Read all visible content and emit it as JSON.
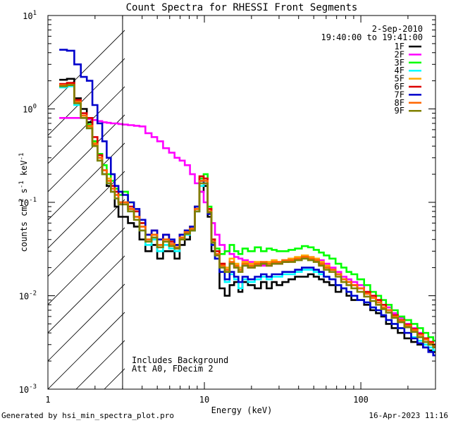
{
  "chart_data": {
    "type": "line",
    "title": "Count Spectra for RHESSI Front Segments",
    "xlabel": "Energy (keV)",
    "ylabel": "counts cm-2 s-1 keV-1",
    "xscale": "log",
    "yscale": "log",
    "xlim": [
      1,
      300
    ],
    "ylim": [
      0.001,
      10
    ],
    "x_ticks": [
      {
        "value": 1,
        "label": "1"
      },
      {
        "value": 10,
        "label": "10"
      },
      {
        "value": 100,
        "label": "100"
      }
    ],
    "y_ticks": [
      {
        "value": 0.001,
        "base": "10",
        "exp": "-3"
      },
      {
        "value": 0.01,
        "base": "10",
        "exp": "-2"
      },
      {
        "value": 0.1,
        "base": "10",
        "exp": "-1"
      },
      {
        "value": 1,
        "base": "10",
        "exp": "0"
      },
      {
        "value": 10,
        "base": "10",
        "exp": "1"
      }
    ],
    "date": "2-Sep-2010",
    "time_range": "19:40:00 to 19:41:00",
    "shaded_region": {
      "from": 1,
      "to": 3
    },
    "annotations": [
      "Includes Background",
      "Att A0, FDecim 2"
    ],
    "x": [
      1.25,
      1.4,
      1.55,
      1.7,
      1.85,
      2.0,
      2.15,
      2.3,
      2.45,
      2.6,
      2.75,
      2.9,
      3.1,
      3.4,
      3.7,
      4.0,
      4.4,
      4.8,
      5.2,
      5.7,
      6.2,
      6.7,
      7.2,
      7.8,
      8.4,
      9.0,
      9.6,
      10.2,
      10.8,
      11.4,
      12,
      13,
      14,
      15,
      16,
      17,
      18,
      20,
      22,
      24,
      26,
      28,
      30,
      33,
      36,
      40,
      44,
      48,
      52,
      56,
      60,
      66,
      72,
      78,
      84,
      90,
      100,
      110,
      120,
      130,
      140,
      150,
      165,
      180,
      200,
      220,
      240,
      260,
      280,
      300
    ],
    "series": [
      {
        "name": "1F",
        "color": "#000000",
        "values": [
          2.05,
          2.1,
          1.3,
          1.0,
          0.72,
          0.45,
          0.3,
          0.2,
          0.15,
          0.13,
          0.09,
          0.07,
          0.07,
          0.06,
          0.055,
          0.04,
          0.03,
          0.035,
          0.025,
          0.03,
          0.03,
          0.025,
          0.035,
          0.04,
          0.05,
          0.08,
          0.13,
          0.15,
          0.07,
          0.03,
          0.025,
          0.012,
          0.01,
          0.013,
          0.014,
          0.011,
          0.014,
          0.013,
          0.012,
          0.014,
          0.012,
          0.014,
          0.013,
          0.014,
          0.015,
          0.016,
          0.016,
          0.017,
          0.016,
          0.015,
          0.014,
          0.013,
          0.011,
          0.012,
          0.01,
          0.009,
          0.009,
          0.008,
          0.007,
          0.0065,
          0.006,
          0.005,
          0.0045,
          0.004,
          0.0035,
          0.0032,
          0.003,
          0.0028,
          0.0026,
          0.0025
        ]
      },
      {
        "name": "2F",
        "color": "#ff00ff",
        "values": [
          0.8,
          0.8,
          0.8,
          0.8,
          0.78,
          0.76,
          0.74,
          0.72,
          0.71,
          0.7,
          0.7,
          0.69,
          0.68,
          0.67,
          0.66,
          0.65,
          0.55,
          0.5,
          0.45,
          0.38,
          0.34,
          0.3,
          0.28,
          0.25,
          0.2,
          0.16,
          0.13,
          0.1,
          0.08,
          0.06,
          0.045,
          0.035,
          0.03,
          0.028,
          0.026,
          0.025,
          0.024,
          0.023,
          0.022,
          0.021,
          0.021,
          0.022,
          0.022,
          0.023,
          0.024,
          0.025,
          0.026,
          0.026,
          0.025,
          0.024,
          0.022,
          0.02,
          0.018,
          0.016,
          0.015,
          0.014,
          0.013,
          0.011,
          0.01,
          0.009,
          0.008,
          0.0075,
          0.0065,
          0.0058,
          0.005,
          0.0045,
          0.004,
          0.0035,
          0.0032,
          0.003
        ]
      },
      {
        "name": "3F",
        "color": "#00ff00",
        "values": [
          1.75,
          1.8,
          1.2,
          0.85,
          0.68,
          0.45,
          0.33,
          0.25,
          0.2,
          0.17,
          0.14,
          0.12,
          0.13,
          0.1,
          0.08,
          0.06,
          0.04,
          0.045,
          0.035,
          0.04,
          0.038,
          0.035,
          0.045,
          0.05,
          0.055,
          0.09,
          0.18,
          0.2,
          0.09,
          0.04,
          0.032,
          0.028,
          0.03,
          0.035,
          0.03,
          0.028,
          0.032,
          0.03,
          0.033,
          0.03,
          0.032,
          0.031,
          0.03,
          0.03,
          0.031,
          0.032,
          0.034,
          0.033,
          0.031,
          0.029,
          0.027,
          0.025,
          0.022,
          0.02,
          0.018,
          0.017,
          0.015,
          0.013,
          0.011,
          0.01,
          0.009,
          0.008,
          0.007,
          0.006,
          0.0055,
          0.005,
          0.0045,
          0.004,
          0.0036,
          0.0033
        ]
      },
      {
        "name": "4F",
        "color": "#00ffff",
        "values": [
          1.7,
          1.75,
          1.1,
          0.8,
          0.62,
          0.4,
          0.28,
          0.2,
          0.16,
          0.13,
          0.11,
          0.1,
          0.1,
          0.08,
          0.07,
          0.05,
          0.035,
          0.04,
          0.03,
          0.035,
          0.032,
          0.03,
          0.04,
          0.045,
          0.05,
          0.08,
          0.15,
          0.17,
          0.08,
          0.035,
          0.025,
          0.018,
          0.014,
          0.017,
          0.015,
          0.012,
          0.015,
          0.014,
          0.015,
          0.016,
          0.015,
          0.016,
          0.016,
          0.017,
          0.017,
          0.018,
          0.019,
          0.019,
          0.018,
          0.017,
          0.016,
          0.015,
          0.013,
          0.012,
          0.011,
          0.01,
          0.009,
          0.0085,
          0.0075,
          0.007,
          0.0062,
          0.0055,
          0.005,
          0.0045,
          0.004,
          0.0036,
          0.0033,
          0.003,
          0.0028,
          0.0026
        ]
      },
      {
        "name": "5F",
        "color": "#ffaa00",
        "values": [
          1.8,
          1.85,
          1.2,
          0.85,
          0.65,
          0.43,
          0.3,
          0.22,
          0.18,
          0.15,
          0.12,
          0.1,
          0.1,
          0.085,
          0.07,
          0.055,
          0.04,
          0.045,
          0.035,
          0.04,
          0.035,
          0.033,
          0.042,
          0.048,
          0.052,
          0.085,
          0.17,
          0.18,
          0.085,
          0.04,
          0.03,
          0.022,
          0.02,
          0.025,
          0.022,
          0.02,
          0.023,
          0.022,
          0.023,
          0.022,
          0.023,
          0.024,
          0.023,
          0.024,
          0.025,
          0.026,
          0.027,
          0.026,
          0.025,
          0.023,
          0.021,
          0.019,
          0.017,
          0.015,
          0.014,
          0.013,
          0.012,
          0.0105,
          0.0095,
          0.0085,
          0.0075,
          0.007,
          0.006,
          0.0054,
          0.0048,
          0.0043,
          0.0038,
          0.0034,
          0.0031,
          0.0029
        ]
      },
      {
        "name": "6F",
        "color": "#dd0000",
        "values": [
          1.85,
          1.9,
          1.25,
          0.9,
          0.8,
          0.5,
          0.32,
          0.22,
          0.17,
          0.15,
          0.13,
          0.1,
          0.1,
          0.09,
          0.08,
          0.06,
          0.045,
          0.05,
          0.04,
          0.045,
          0.038,
          0.035,
          0.045,
          0.05,
          0.055,
          0.09,
          0.19,
          0.18,
          0.085,
          0.04,
          0.03,
          0.022,
          0.018,
          0.022,
          0.02,
          0.018,
          0.021,
          0.02,
          0.021,
          0.022,
          0.021,
          0.022,
          0.022,
          0.023,
          0.024,
          0.025,
          0.026,
          0.025,
          0.024,
          0.022,
          0.02,
          0.019,
          0.017,
          0.015,
          0.014,
          0.013,
          0.012,
          0.011,
          0.01,
          0.009,
          0.008,
          0.007,
          0.0062,
          0.0055,
          0.0049,
          0.0044,
          0.0039,
          0.0035,
          0.0032,
          0.003
        ]
      },
      {
        "name": "7F",
        "color": "#0000cc",
        "values": [
          4.3,
          4.2,
          3.0,
          2.2,
          2.0,
          1.1,
          0.7,
          0.45,
          0.3,
          0.2,
          0.15,
          0.13,
          0.12,
          0.1,
          0.085,
          0.065,
          0.045,
          0.05,
          0.04,
          0.045,
          0.04,
          0.035,
          0.045,
          0.05,
          0.055,
          0.09,
          0.17,
          0.16,
          0.075,
          0.035,
          0.025,
          0.018,
          0.015,
          0.018,
          0.016,
          0.014,
          0.016,
          0.015,
          0.016,
          0.017,
          0.016,
          0.017,
          0.017,
          0.018,
          0.018,
          0.019,
          0.02,
          0.02,
          0.019,
          0.018,
          0.016,
          0.015,
          0.013,
          0.012,
          0.011,
          0.01,
          0.009,
          0.0085,
          0.0075,
          0.007,
          0.0062,
          0.0055,
          0.005,
          0.0045,
          0.004,
          0.0035,
          0.0031,
          0.0028,
          0.0025,
          0.0023
        ]
      },
      {
        "name": "8F",
        "color": "#ff6600",
        "values": [
          1.8,
          1.8,
          1.2,
          0.85,
          0.66,
          0.42,
          0.3,
          0.22,
          0.17,
          0.14,
          0.12,
          0.1,
          0.1,
          0.085,
          0.07,
          0.055,
          0.04,
          0.045,
          0.035,
          0.04,
          0.036,
          0.033,
          0.042,
          0.048,
          0.052,
          0.085,
          0.17,
          0.17,
          0.08,
          0.038,
          0.028,
          0.021,
          0.019,
          0.023,
          0.021,
          0.019,
          0.022,
          0.021,
          0.022,
          0.023,
          0.022,
          0.023,
          0.023,
          0.024,
          0.024,
          0.025,
          0.026,
          0.025,
          0.024,
          0.022,
          0.02,
          0.019,
          0.017,
          0.015,
          0.014,
          0.013,
          0.012,
          0.0105,
          0.0095,
          0.0085,
          0.0075,
          0.007,
          0.006,
          0.0054,
          0.0048,
          0.0043,
          0.0038,
          0.0034,
          0.0031,
          0.0029
        ]
      },
      {
        "name": "9F",
        "color": "#808000",
        "values": [
          1.75,
          1.8,
          1.15,
          0.8,
          0.62,
          0.4,
          0.28,
          0.2,
          0.16,
          0.13,
          0.11,
          0.095,
          0.095,
          0.08,
          0.065,
          0.05,
          0.038,
          0.042,
          0.033,
          0.038,
          0.034,
          0.032,
          0.04,
          0.046,
          0.05,
          0.08,
          0.16,
          0.16,
          0.078,
          0.037,
          0.027,
          0.02,
          0.018,
          0.022,
          0.02,
          0.018,
          0.021,
          0.02,
          0.021,
          0.022,
          0.021,
          0.022,
          0.022,
          0.023,
          0.023,
          0.024,
          0.025,
          0.024,
          0.023,
          0.021,
          0.019,
          0.018,
          0.016,
          0.014,
          0.013,
          0.012,
          0.011,
          0.0098,
          0.0088,
          0.008,
          0.0072,
          0.0066,
          0.0058,
          0.0052,
          0.0046,
          0.0041,
          0.0036,
          0.0032,
          0.003,
          0.0028
        ]
      }
    ]
  },
  "footer": {
    "generated_by": "Generated by hsi_min_spectra_plot.pro",
    "timestamp": "16-Apr-2023 11:16"
  }
}
